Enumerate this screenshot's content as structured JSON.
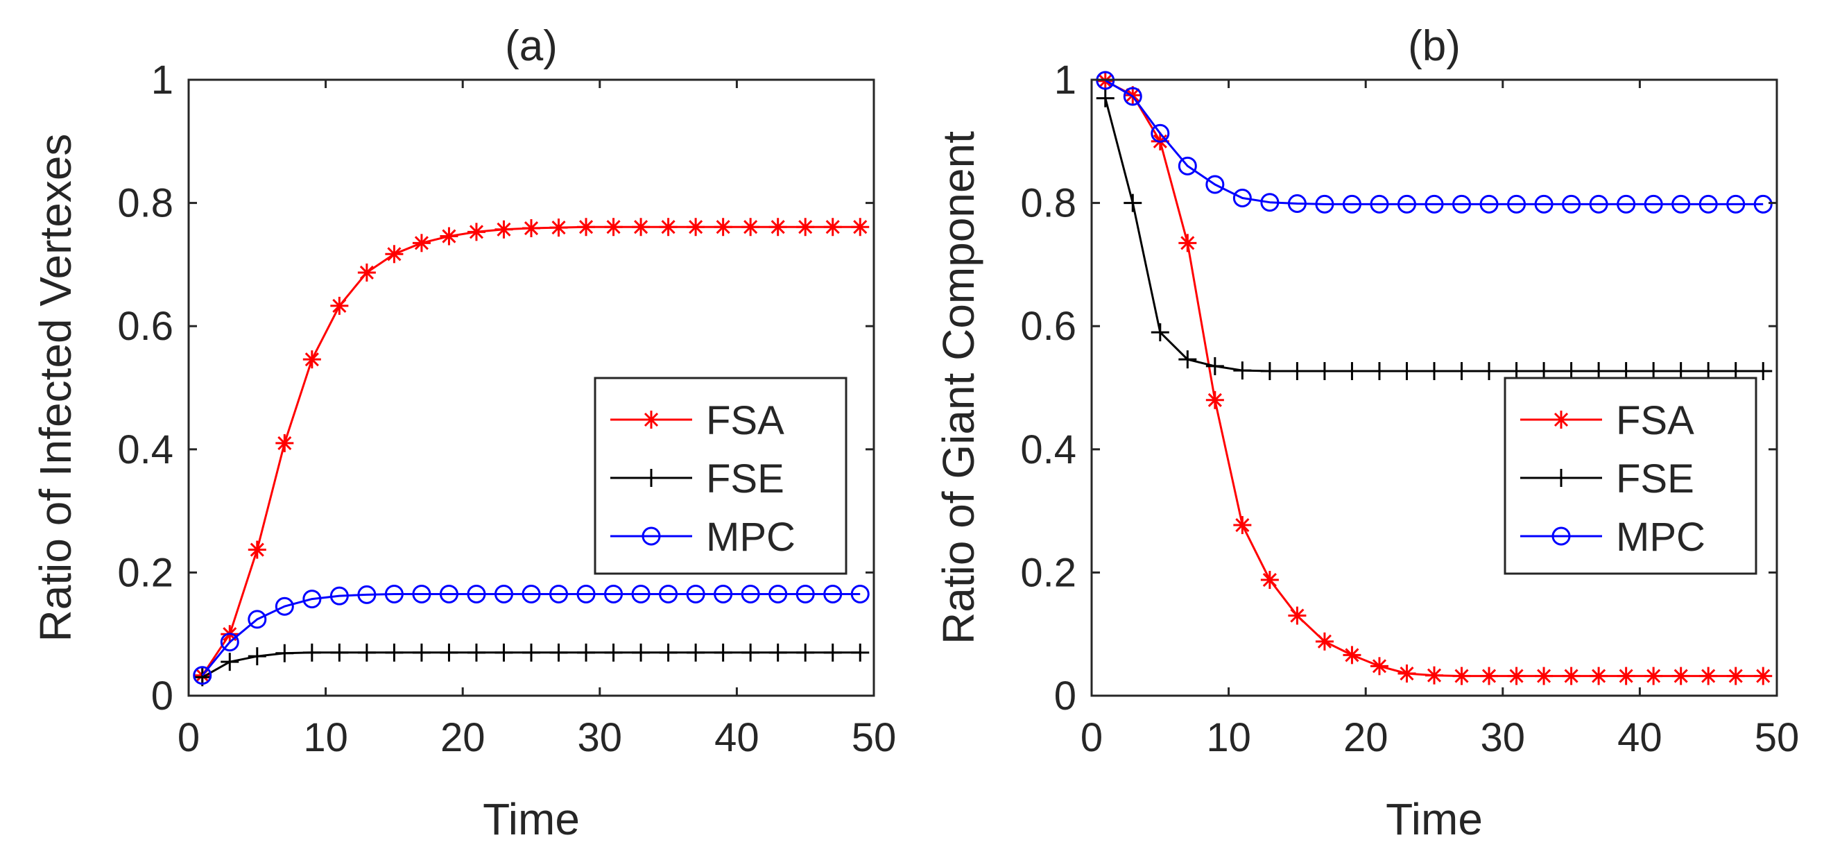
{
  "colors": {
    "FSA": "#ff0000",
    "FSE": "#000000",
    "MPC": "#0000ff",
    "axis": "#262626"
  },
  "chart_data": [
    {
      "type": "line",
      "title": "(a)",
      "xlabel": "Time",
      "ylabel": "Ratio of Infected Vertexes",
      "xlim": [
        0,
        50
      ],
      "ylim": [
        0,
        1
      ],
      "xticks": [
        "0",
        "10",
        "20",
        "30",
        "40",
        "50"
      ],
      "yticks": [
        "0",
        "0.2",
        "0.4",
        "0.6",
        "0.8",
        "1"
      ],
      "legend_position": "center-right",
      "x": [
        1,
        3,
        5,
        7,
        9,
        11,
        13,
        15,
        17,
        19,
        21,
        23,
        25,
        27,
        29,
        31,
        33,
        35,
        37,
        39,
        41,
        43,
        45,
        47,
        49
      ],
      "series": [
        {
          "name": "FSA",
          "marker": "asterisk",
          "values": [
            0.033,
            0.1,
            0.237,
            0.41,
            0.546,
            0.633,
            0.687,
            0.717,
            0.735,
            0.746,
            0.753,
            0.757,
            0.759,
            0.76,
            0.761,
            0.761,
            0.761,
            0.761,
            0.761,
            0.761,
            0.761,
            0.761,
            0.761,
            0.761,
            0.761
          ]
        },
        {
          "name": "FSE",
          "marker": "plus",
          "values": [
            0.03,
            0.055,
            0.064,
            0.069,
            0.07,
            0.07,
            0.07,
            0.07,
            0.07,
            0.07,
            0.07,
            0.07,
            0.07,
            0.07,
            0.07,
            0.07,
            0.07,
            0.07,
            0.07,
            0.07,
            0.07,
            0.07,
            0.07,
            0.07,
            0.07
          ]
        },
        {
          "name": "MPC",
          "marker": "circle",
          "values": [
            0.033,
            0.087,
            0.124,
            0.145,
            0.157,
            0.162,
            0.164,
            0.165,
            0.165,
            0.165,
            0.165,
            0.165,
            0.165,
            0.165,
            0.165,
            0.165,
            0.165,
            0.165,
            0.165,
            0.165,
            0.165,
            0.165,
            0.165,
            0.165,
            0.165
          ]
        }
      ]
    },
    {
      "type": "line",
      "title": "(b)",
      "xlabel": "Time",
      "ylabel": "Ratio of Giant Component",
      "xlim": [
        0,
        50
      ],
      "ylim": [
        0,
        1
      ],
      "xticks": [
        "0",
        "10",
        "20",
        "30",
        "40",
        "50"
      ],
      "yticks": [
        "0",
        "0.2",
        "0.4",
        "0.6",
        "0.8",
        "1"
      ],
      "legend_position": "center-right",
      "x": [
        1,
        3,
        5,
        7,
        9,
        11,
        13,
        15,
        17,
        19,
        21,
        23,
        25,
        27,
        29,
        31,
        33,
        35,
        37,
        39,
        41,
        43,
        45,
        47,
        49
      ],
      "series": [
        {
          "name": "FSA",
          "marker": "asterisk",
          "values": [
            0.998,
            0.975,
            0.9,
            0.735,
            0.48,
            0.277,
            0.188,
            0.13,
            0.088,
            0.066,
            0.048,
            0.036,
            0.033,
            0.032,
            0.032,
            0.032,
            0.032,
            0.032,
            0.032,
            0.032,
            0.032,
            0.032,
            0.032,
            0.032,
            0.032
          ]
        },
        {
          "name": "FSE",
          "marker": "plus",
          "values": [
            0.97,
            0.8,
            0.59,
            0.546,
            0.535,
            0.528,
            0.527,
            0.527,
            0.527,
            0.527,
            0.527,
            0.527,
            0.527,
            0.527,
            0.527,
            0.527,
            0.527,
            0.527,
            0.527,
            0.527,
            0.527,
            0.527,
            0.527,
            0.527,
            0.527
          ]
        },
        {
          "name": "MPC",
          "marker": "circle",
          "values": [
            0.999,
            0.973,
            0.913,
            0.86,
            0.83,
            0.808,
            0.801,
            0.799,
            0.798,
            0.798,
            0.798,
            0.798,
            0.798,
            0.798,
            0.798,
            0.798,
            0.798,
            0.798,
            0.798,
            0.798,
            0.798,
            0.798,
            0.798,
            0.798,
            0.798
          ]
        }
      ]
    }
  ]
}
